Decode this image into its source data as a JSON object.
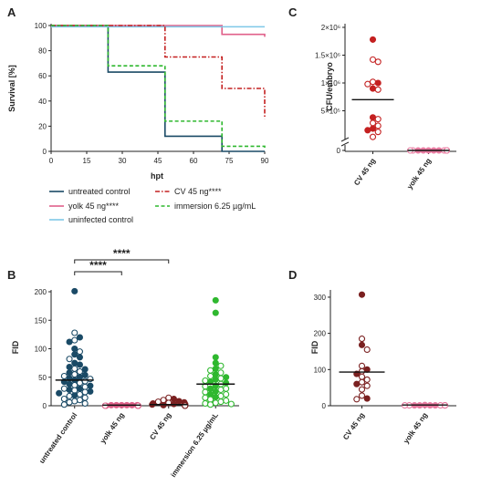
{
  "colors": {
    "untreated": "#1a4a66",
    "yolk": "#e0608a",
    "cv": "#c42020",
    "immersion": "#2fb82f",
    "uninfected": "#7ec8e8",
    "cvDark": "#7a2020",
    "yolkPink": "#e87aa0",
    "immGreen": "#44b833"
  },
  "chart_data": [
    {
      "id": "A",
      "panel_label": "A",
      "type": "line",
      "step": true,
      "xlabel": "hpt",
      "ylabel": "Survival [%]",
      "xlim": [
        0,
        90
      ],
      "ylim": [
        0,
        100
      ],
      "xticks": [
        0,
        15,
        30,
        45,
        60,
        75,
        90
      ],
      "yticks": [
        0,
        20,
        40,
        60,
        80,
        100
      ],
      "legend_position": "below",
      "series": [
        {
          "name": "untreated control",
          "color_key": "untreated",
          "dash": "",
          "x": [
            0,
            24,
            48,
            72,
            90
          ],
          "y": [
            100,
            63,
            12,
            0,
            0
          ]
        },
        {
          "name": "yolk 45 ng****",
          "color_key": "yolk",
          "dash": "",
          "x": [
            0,
            72,
            90
          ],
          "y": [
            100,
            93,
            91
          ]
        },
        {
          "name": "uninfected control",
          "color_key": "uninfected",
          "dash": "",
          "x": [
            0,
            90
          ],
          "y": [
            99,
            99
          ]
        },
        {
          "name": "CV 45 ng****",
          "color_key": "cv",
          "dash": "5,2,1.5,2",
          "x": [
            0,
            48,
            72,
            90
          ],
          "y": [
            100,
            75,
            50,
            26
          ]
        },
        {
          "name": "immersion 6.25 µg/mL",
          "color_key": "immersion",
          "dash": "4,2.5",
          "x": [
            0,
            24,
            48,
            72,
            90
          ],
          "y": [
            100,
            68,
            24,
            4,
            2
          ]
        }
      ]
    },
    {
      "id": "B",
      "panel_label": "B",
      "type": "scatter",
      "xlabel": "",
      "ylabel": "FID",
      "ylim": [
        0,
        200
      ],
      "yticks": [
        0,
        50,
        100,
        150,
        200
      ],
      "categories": [
        "untreated control",
        "yolk 45 ng",
        "CV 45 ng",
        "immersion 6.25 µg/mL"
      ],
      "means": [
        45,
        1,
        2,
        38
      ],
      "significance": [
        {
          "from": 0,
          "to": 1,
          "label": "****"
        },
        {
          "from": 0,
          "to": 2,
          "label": "****"
        }
      ],
      "groups": [
        {
          "category": "untreated control",
          "color_key": "untreated",
          "filled": [
            201,
            120,
            112,
            100,
            90,
            85,
            75,
            72,
            68,
            64,
            58,
            54,
            50,
            48,
            45,
            42,
            38,
            35,
            30,
            28,
            25,
            22,
            18
          ],
          "open": [
            128,
            115,
            95,
            82,
            65,
            60,
            55,
            52,
            47,
            43,
            40,
            36,
            33,
            30,
            27,
            24,
            20,
            17,
            14,
            12,
            10,
            8,
            6,
            4,
            2
          ]
        },
        {
          "category": "yolk 45 ng",
          "color_key": "yolk",
          "filled": [
            1,
            1,
            1,
            1,
            1,
            1
          ],
          "open": [
            0,
            0,
            0,
            0,
            0,
            0,
            0,
            0
          ]
        },
        {
          "category": "CV 45 ng",
          "color_key": "cvDark",
          "filled": [
            12,
            8,
            6,
            4,
            3,
            2,
            1,
            1
          ],
          "open": [
            14,
            10,
            7,
            5,
            3,
            2,
            1,
            0,
            0,
            0
          ]
        },
        {
          "category": "immersion 6.25 µg/mL",
          "color_key": "immersion",
          "filled": [
            185,
            163,
            85,
            75,
            65,
            55,
            50,
            46,
            42,
            40,
            35,
            30,
            25,
            20,
            15
          ],
          "open": [
            70,
            62,
            58,
            52,
            48,
            44,
            38,
            34,
            30,
            28,
            24,
            20,
            17,
            14,
            11,
            9,
            7,
            5,
            4,
            3,
            2
          ]
        }
      ]
    },
    {
      "id": "C",
      "panel_label": "C",
      "type": "scatter",
      "xlabel": "",
      "ylabel": "CFU/embryo",
      "yticks": [
        {
          "value": 0,
          "label": "0"
        },
        {
          "value": 500000,
          "label": "5×10⁵"
        },
        {
          "value": 1000000,
          "label": "1×10⁶"
        },
        {
          "value": 1500000,
          "label": "1.5×10⁶"
        },
        {
          "value": 2000000,
          "label": "2×10⁶"
        }
      ],
      "axis_break": true,
      "categories": [
        "CV 45 ng",
        "yolk 45 ng"
      ],
      "means": [
        700000,
        0
      ],
      "groups": [
        {
          "category": "CV 45 ng",
          "color_key": "cv",
          "filled": [
            1780000,
            1000000,
            900000,
            380000,
            180000,
            150000
          ],
          "open": [
            1420000,
            1380000,
            1020000,
            980000,
            880000,
            350000,
            280000,
            230000,
            120000,
            30000
          ]
        },
        {
          "category": "yolk 45 ng",
          "color_key": "yolkPink",
          "filled": [
            0,
            0,
            0,
            0,
            0
          ],
          "open": [
            0,
            0,
            0,
            0,
            0,
            0,
            0
          ]
        }
      ]
    },
    {
      "id": "D",
      "panel_label": "D",
      "type": "scatter",
      "xlabel": "",
      "ylabel": "FID",
      "ylim": [
        0,
        320
      ],
      "yticks": [
        0,
        100,
        200,
        300
      ],
      "categories": [
        "CV 45 ng",
        "yolk 45 ng"
      ],
      "means": [
        93,
        2
      ],
      "groups": [
        {
          "category": "CV 45 ng",
          "color_key": "cvDark",
          "filled": [
            307,
            168,
            100,
            88,
            60,
            20
          ],
          "open": [
            185,
            155,
            110,
            95,
            80,
            72,
            65,
            55,
            45,
            28,
            18
          ]
        },
        {
          "category": "yolk 45 ng",
          "color_key": "yolkPink",
          "filled": [
            2,
            1,
            1,
            1,
            1
          ],
          "open": [
            1,
            1,
            1,
            1,
            1,
            1,
            1
          ]
        }
      ]
    }
  ]
}
